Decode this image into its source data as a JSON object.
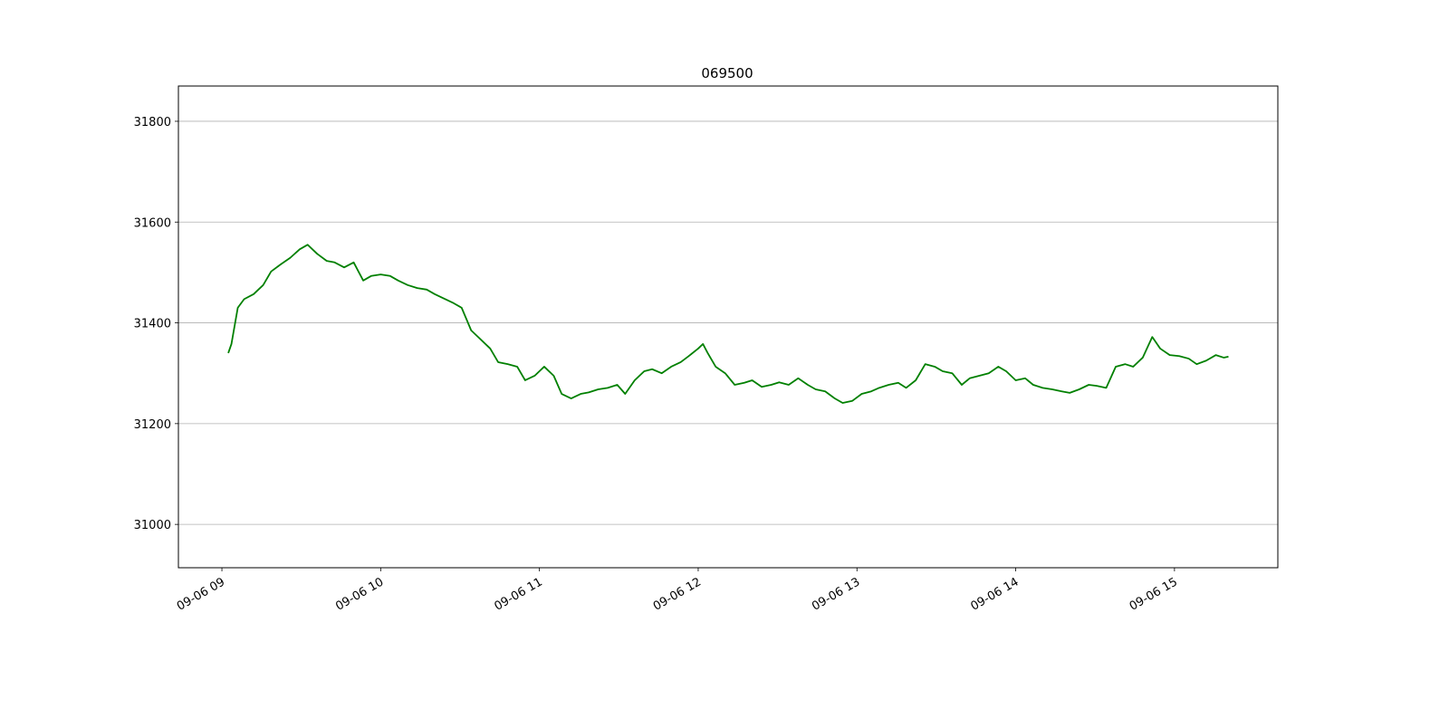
{
  "chart_data": {
    "type": "line",
    "title": "069500",
    "x": [
      9.04,
      9.06,
      9.1,
      9.14,
      9.2,
      9.26,
      9.31,
      9.37,
      9.43,
      9.49,
      9.54,
      9.6,
      9.66,
      9.71,
      9.77,
      9.83,
      9.89,
      9.94,
      10,
      10.06,
      10.11,
      10.17,
      10.23,
      10.29,
      10.34,
      10.4,
      10.46,
      10.51,
      10.57,
      10.63,
      10.69,
      10.74,
      10.8,
      10.86,
      10.91,
      10.97,
      11.03,
      11.09,
      11.14,
      11.2,
      11.26,
      11.31,
      11.37,
      11.43,
      11.49,
      11.54,
      11.6,
      11.66,
      11.71,
      11.77,
      11.83,
      11.89,
      11.94,
      12,
      12.03,
      12.06,
      12.11,
      12.17,
      12.23,
      12.29,
      12.34,
      12.4,
      12.46,
      12.51,
      12.57,
      12.63,
      12.69,
      12.74,
      12.8,
      12.86,
      12.91,
      12.97,
      13.03,
      13.09,
      13.14,
      13.2,
      13.26,
      13.31,
      13.37,
      13.43,
      13.49,
      13.54,
      13.6,
      13.66,
      13.71,
      13.77,
      13.83,
      13.89,
      13.94,
      14,
      14.06,
      14.11,
      14.17,
      14.23,
      14.29,
      14.34,
      14.4,
      14.46,
      14.51,
      14.57,
      14.63,
      14.69,
      14.74,
      14.8,
      14.86,
      14.91,
      14.97,
      15.03,
      15.09,
      15.14,
      15.2,
      15.26,
      15.31,
      15.34
    ],
    "values": [
      31340,
      31358,
      31430,
      31447,
      31457,
      31475,
      31502,
      31516,
      31529,
      31546,
      31555,
      31537,
      31523,
      31520,
      31510,
      31520,
      31484,
      31493,
      31496,
      31493,
      31484,
      31475,
      31469,
      31466,
      31457,
      31448,
      31439,
      31430,
      31385,
      31367,
      31349,
      31322,
      31318,
      31313,
      31286,
      31295,
      31313,
      31295,
      31259,
      31250,
      31259,
      31262,
      31268,
      31271,
      31277,
      31259,
      31286,
      31304,
      31308,
      31300,
      31313,
      31322,
      31334,
      31349,
      31358,
      31340,
      31313,
      31300,
      31277,
      31281,
      31286,
      31273,
      31277,
      31282,
      31277,
      31290,
      31277,
      31268,
      31264,
      31250,
      31241,
      31245,
      31259,
      31264,
      31271,
      31277,
      31281,
      31271,
      31286,
      31318,
      31313,
      31304,
      31300,
      31277,
      31290,
      31295,
      31300,
      31313,
      31304,
      31286,
      31290,
      31277,
      31271,
      31268,
      31264,
      31261,
      31268,
      31277,
      31275,
      31271,
      31313,
      31318,
      31313,
      31331,
      31372,
      31349,
      31336,
      31334,
      31329,
      31318,
      31325,
      31336,
      31331,
      31333
    ],
    "color": "#008000",
    "xlim": [
      8.726,
      15.651
    ],
    "xticks": [
      {
        "value": 9,
        "label": "09-06 09"
      },
      {
        "value": 10,
        "label": "09-06 10"
      },
      {
        "value": 11,
        "label": "09-06 11"
      },
      {
        "value": 12,
        "label": "09-06 12"
      },
      {
        "value": 13,
        "label": "09-06 13"
      },
      {
        "value": 14,
        "label": "09-06 14"
      },
      {
        "value": 15,
        "label": "09-06 15"
      }
    ],
    "ylim": [
      30914,
      31870
    ],
    "yticks": [
      31000,
      31200,
      31400,
      31600,
      31800
    ],
    "grid": true
  }
}
